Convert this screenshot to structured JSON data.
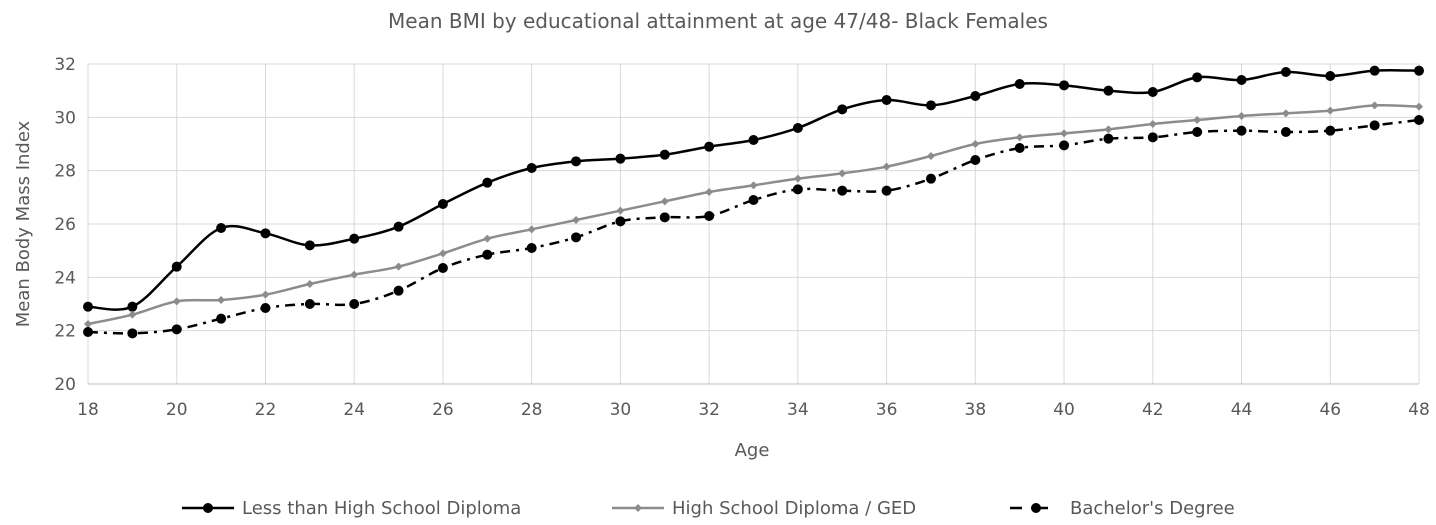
{
  "chart_data": {
    "type": "line",
    "title": "Mean BMI by educational attainment at age 47/48- Black Females",
    "xlabel": "Age",
    "ylabel": "Mean Body Mass Index",
    "xlim": [
      18,
      48
    ],
    "ylim": [
      20,
      32
    ],
    "x_ticks": [
      18,
      20,
      22,
      24,
      26,
      28,
      30,
      32,
      34,
      36,
      38,
      40,
      42,
      44,
      46,
      48
    ],
    "y_ticks": [
      20,
      22,
      24,
      26,
      28,
      30,
      32
    ],
    "grid": true,
    "legend_position": "bottom",
    "x": [
      18,
      19,
      20,
      21,
      22,
      23,
      24,
      25,
      26,
      27,
      28,
      29,
      30,
      31,
      32,
      33,
      34,
      35,
      36,
      37,
      38,
      39,
      40,
      41,
      42,
      43,
      44,
      45,
      46,
      47,
      48
    ],
    "series": [
      {
        "name": "Less than High School Diploma",
        "color": "#000000",
        "line_style": "solid",
        "marker": "circle",
        "values": [
          22.9,
          22.9,
          24.4,
          25.85,
          25.65,
          25.2,
          25.45,
          25.9,
          26.75,
          27.55,
          28.1,
          28.35,
          28.45,
          28.6,
          28.9,
          29.15,
          29.6,
          30.3,
          30.65,
          30.45,
          30.8,
          31.25,
          31.2,
          31.0,
          30.95,
          31.5,
          31.4,
          31.7,
          31.55,
          31.75,
          31.75
        ]
      },
      {
        "name": "High School Diploma / GED",
        "color": "#8c8c8c",
        "line_style": "solid",
        "marker": "diamond",
        "values": [
          22.25,
          22.6,
          23.1,
          23.15,
          23.35,
          23.75,
          24.1,
          24.4,
          24.9,
          25.45,
          25.8,
          26.15,
          26.5,
          26.85,
          27.2,
          27.45,
          27.7,
          27.9,
          28.15,
          28.55,
          29.0,
          29.25,
          29.4,
          29.55,
          29.75,
          29.9,
          30.05,
          30.15,
          30.25,
          30.45,
          30.4
        ]
      },
      {
        "name": "Bachelor's Degree",
        "color": "#000000",
        "line_style": "dash-dot",
        "marker": "circle",
        "values": [
          21.95,
          21.9,
          22.05,
          22.45,
          22.85,
          23.0,
          23.0,
          23.5,
          24.35,
          24.85,
          25.1,
          25.5,
          26.1,
          26.25,
          26.3,
          26.9,
          27.3,
          27.25,
          27.25,
          27.7,
          28.4,
          28.85,
          28.95,
          29.2,
          29.25,
          29.45,
          29.5,
          29.45,
          29.5,
          29.7,
          29.9
        ]
      }
    ]
  }
}
